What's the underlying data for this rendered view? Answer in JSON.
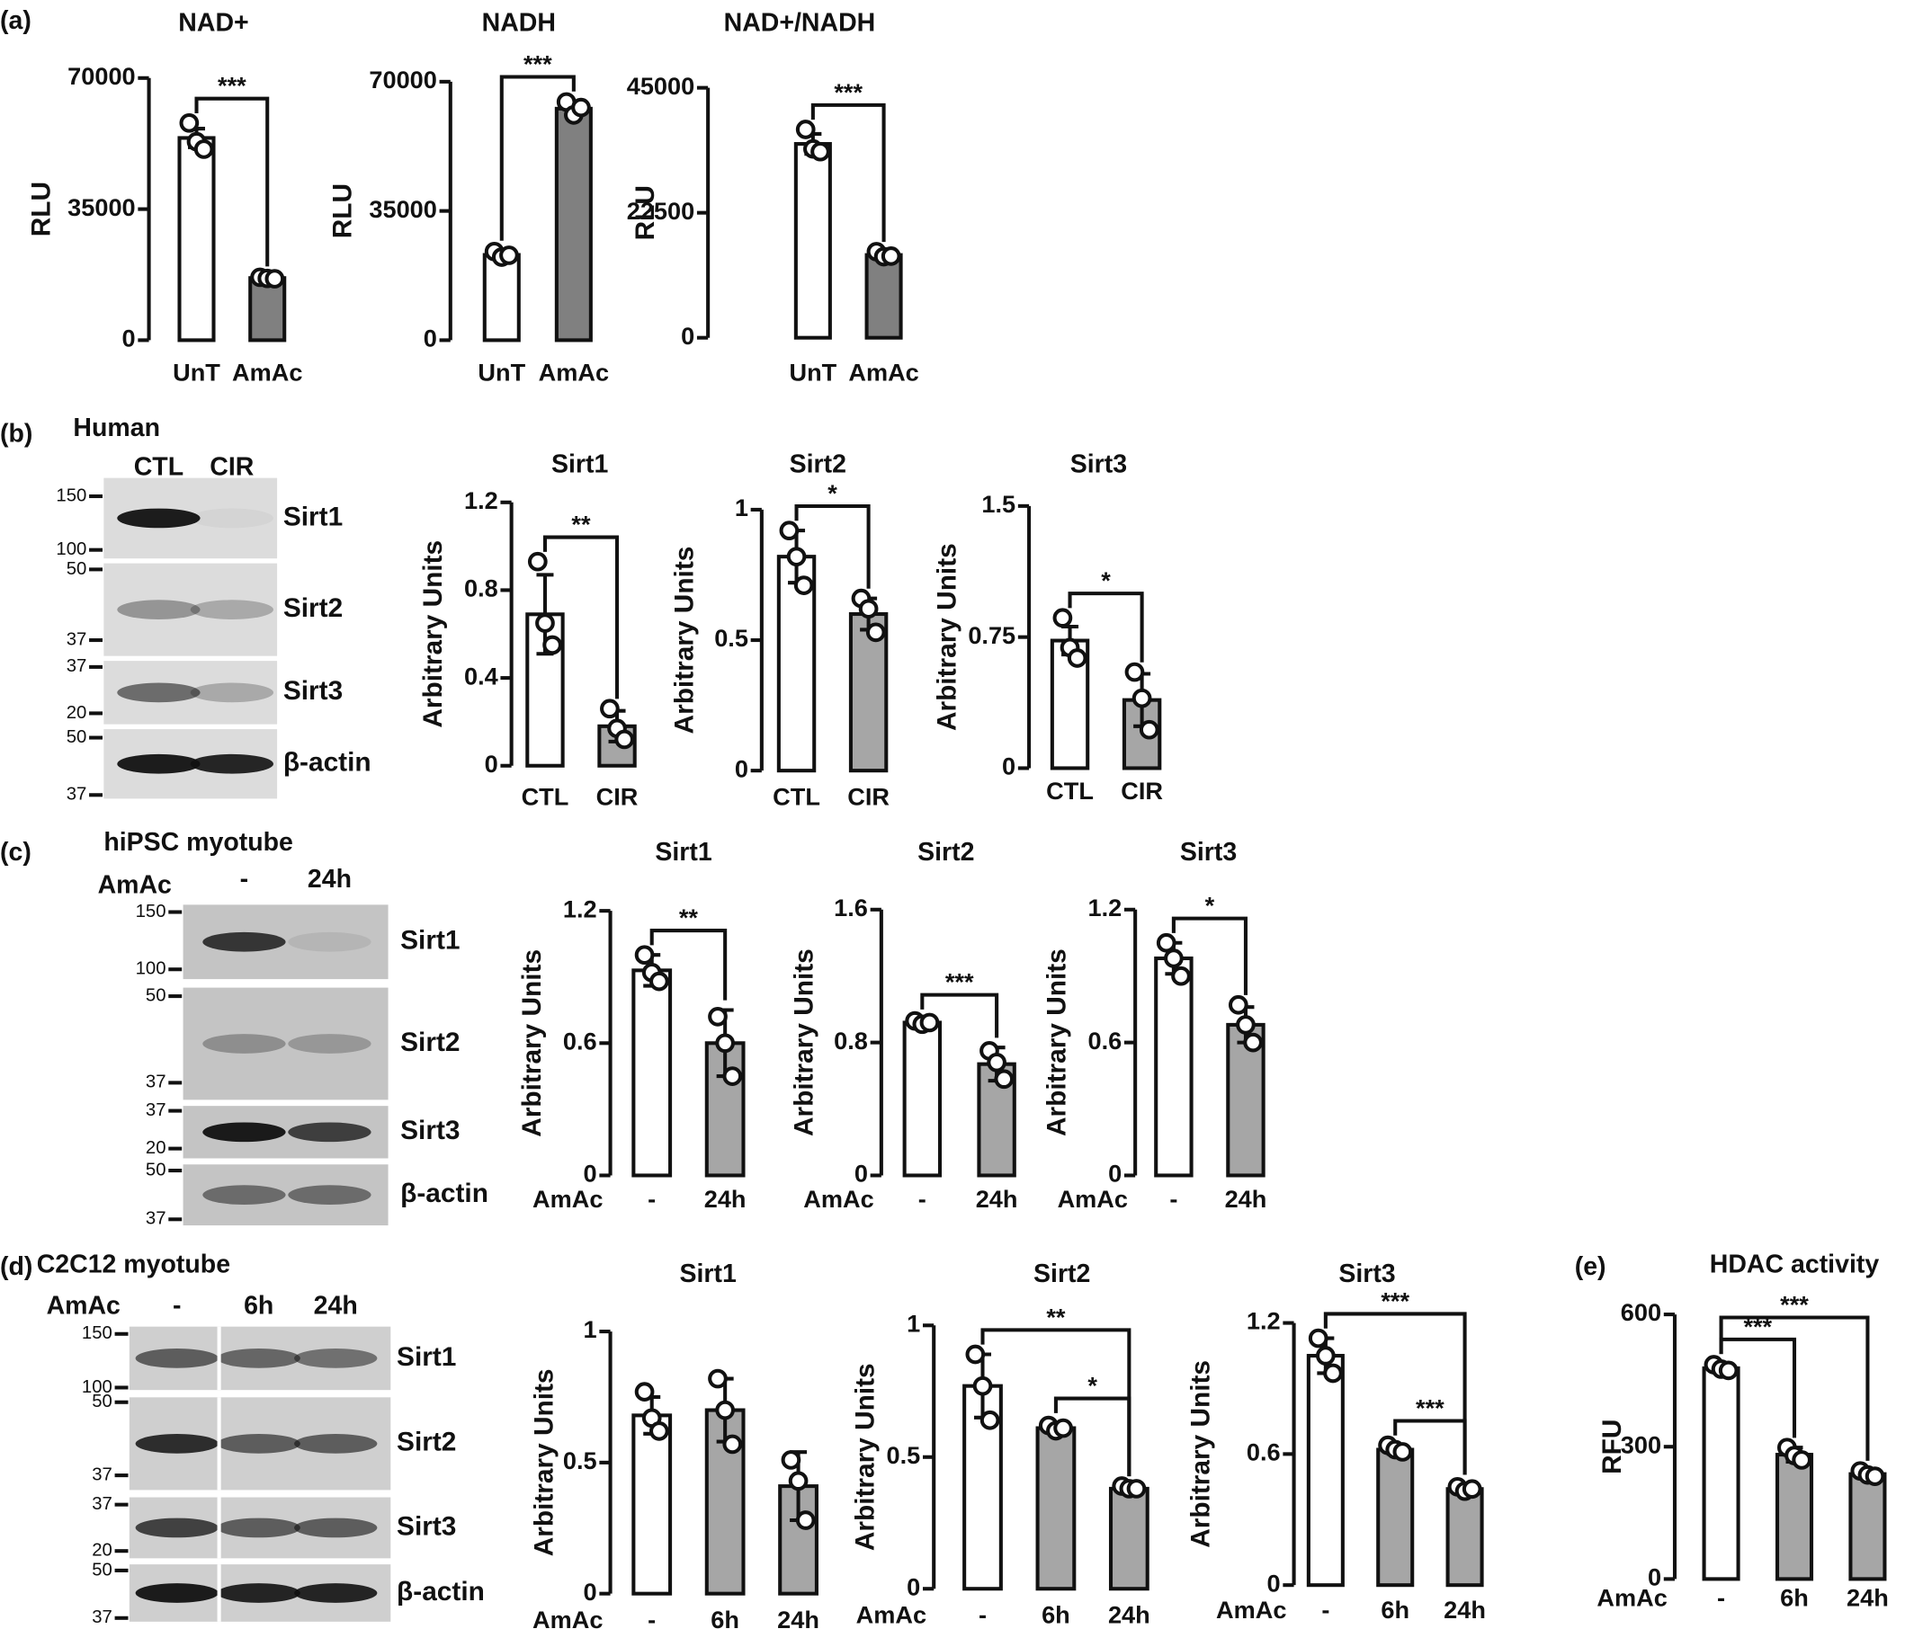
{
  "panel_labels": [
    "(a)",
    "(b)",
    "(c)",
    "(d)",
    "(e)"
  ],
  "blots": [
    {
      "title": "Human",
      "lanes": [
        "CTL",
        "CIR"
      ],
      "rows": [
        {
          "name": "Sirt1",
          "markers": [
            150,
            100
          ]
        },
        {
          "name": "Sirt2",
          "markers": [
            50,
            37
          ]
        },
        {
          "name": "Sirt3",
          "markers": [
            37,
            20
          ]
        },
        {
          "name": "β-actin",
          "markers": [
            50,
            37
          ]
        }
      ]
    },
    {
      "title": "hiPSC myotube",
      "treatment": "AmAc",
      "lanes": [
        "-",
        "24h"
      ],
      "rows": [
        {
          "name": "Sirt1",
          "markers": [
            150,
            100
          ]
        },
        {
          "name": "Sirt2",
          "markers": [
            50,
            37
          ]
        },
        {
          "name": "Sirt3",
          "markers": [
            37,
            20
          ]
        },
        {
          "name": "β-actin",
          "markers": [
            50,
            37
          ]
        }
      ]
    },
    {
      "title": "C2C12 myotube",
      "treatment": "AmAc",
      "lanes": [
        "-",
        "6h",
        "24h"
      ],
      "rows": [
        {
          "name": "Sirt1",
          "markers": [
            150,
            100
          ]
        },
        {
          "name": "Sirt2",
          "markers": [
            50,
            37
          ]
        },
        {
          "name": "Sirt3",
          "markers": [
            37,
            20
          ]
        },
        {
          "name": "β-actin",
          "markers": [
            50,
            37
          ]
        }
      ]
    }
  ],
  "chart_data": [
    {
      "type": "bar",
      "title": "NAD+",
      "ylabel": "RLU",
      "categories": [
        "UnT",
        "AmAc"
      ],
      "values": [
        54000,
        16600
      ],
      "errors": [
        2500,
        500
      ],
      "points": [
        [
          58000,
          53000,
          51000
        ],
        [
          16800,
          16500,
          16400
        ]
      ],
      "colors": [
        "#ffffff",
        "#808080"
      ],
      "ylim": [
        0,
        70000
      ],
      "yticks": [
        0,
        35000,
        70000
      ],
      "brackets": [
        {
          "label": "***",
          "between": [
            "UnT",
            "AmAc"
          ]
        }
      ]
    },
    {
      "type": "bar",
      "title": "NADH",
      "ylabel": "RLU",
      "categories": [
        "UnT",
        "AmAc"
      ],
      "values": [
        23100,
        62700
      ],
      "errors": [
        1200,
        2000
      ],
      "points": [
        [
          24000,
          22500,
          23000
        ],
        [
          64500,
          61000,
          63000
        ]
      ],
      "colors": [
        "#ffffff",
        "#808080"
      ],
      "ylim": [
        0,
        70000
      ],
      "yticks": [
        0,
        35000,
        70000
      ],
      "brackets": [
        {
          "label": "***",
          "between": [
            "UnT",
            "AmAc"
          ]
        }
      ]
    },
    {
      "type": "bar",
      "title": "NAD+/NADH",
      "ylabel": "RLU",
      "categories": [
        "UnT",
        "AmAc"
      ],
      "values": [
        34900,
        14900
      ],
      "errors": [
        1800,
        600
      ],
      "points": [
        [
          37500,
          34000,
          33500
        ],
        [
          15500,
          14600,
          14700
        ]
      ],
      "colors": [
        "#ffffff",
        "#808080"
      ],
      "ylim": [
        0,
        45000
      ],
      "yticks": [
        0,
        22500,
        45000
      ],
      "brackets": [
        {
          "label": "***",
          "between": [
            "UnT",
            "AmAc"
          ]
        }
      ]
    },
    {
      "type": "bar",
      "title": "Sirt1",
      "ylabel": "Arbitrary Units",
      "categories": [
        "CTL",
        "CIR"
      ],
      "values": [
        0.69,
        0.18
      ],
      "errors": [
        0.18,
        0.07
      ],
      "points": [
        [
          0.93,
          0.65,
          0.55
        ],
        [
          0.26,
          0.17,
          0.12
        ]
      ],
      "colors": [
        "#ffffff",
        "#a6a6a6"
      ],
      "ylim": [
        0,
        1.2
      ],
      "yticks": [
        0,
        0.4,
        0.8,
        1.2
      ],
      "brackets": [
        {
          "label": "**",
          "between": [
            "CTL",
            "CIR"
          ]
        }
      ]
    },
    {
      "type": "bar",
      "title": "Sirt2",
      "ylabel": "Arbitrary Units",
      "categories": [
        "CTL",
        "CIR"
      ],
      "values": [
        0.82,
        0.6
      ],
      "errors": [
        0.1,
        0.06
      ],
      "points": [
        [
          0.92,
          0.82,
          0.71
        ],
        [
          0.66,
          0.62,
          0.53
        ]
      ],
      "colors": [
        "#ffffff",
        "#a6a6a6"
      ],
      "ylim": [
        0,
        1
      ],
      "yticks": [
        0,
        0.5,
        1
      ],
      "brackets": [
        {
          "label": "*",
          "between": [
            "CTL",
            "CIR"
          ]
        }
      ]
    },
    {
      "type": "bar",
      "title": "Sirt3",
      "ylabel": "Arbitrary Units",
      "categories": [
        "CTL",
        "CIR"
      ],
      "values": [
        0.73,
        0.39
      ],
      "errors": [
        0.08,
        0.15
      ],
      "points": [
        [
          0.86,
          0.69,
          0.63
        ],
        [
          0.55,
          0.4,
          0.22
        ]
      ],
      "colors": [
        "#ffffff",
        "#a6a6a6"
      ],
      "ylim": [
        0,
        1.5
      ],
      "yticks": [
        0,
        0.75,
        1.5
      ],
      "brackets": [
        {
          "label": "*",
          "between": [
            "CTL",
            "CIR"
          ]
        }
      ]
    },
    {
      "type": "bar",
      "title": "Sirt1",
      "ylabel": "Arbitrary Units",
      "xlabel": "AmAc",
      "categories": [
        "-",
        "24h"
      ],
      "values": [
        0.93,
        0.6
      ],
      "errors": [
        0.07,
        0.15
      ],
      "points": [
        [
          1.0,
          0.92,
          0.88
        ],
        [
          0.72,
          0.6,
          0.45
        ]
      ],
      "colors": [
        "#ffffff",
        "#a6a6a6"
      ],
      "ylim": [
        0,
        1.2
      ],
      "yticks": [
        0,
        0.6,
        1.2
      ],
      "brackets": [
        {
          "label": "**",
          "between": [
            "-",
            "24h"
          ]
        }
      ]
    },
    {
      "type": "bar",
      "title": "Sirt2",
      "ylabel": "Arbitrary Units",
      "xlabel": "AmAc",
      "categories": [
        "-",
        "24h"
      ],
      "values": [
        0.92,
        0.67
      ],
      "errors": [
        0.02,
        0.1
      ],
      "points": [
        [
          0.93,
          0.91,
          0.92
        ],
        [
          0.75,
          0.68,
          0.58
        ]
      ],
      "colors": [
        "#ffffff",
        "#a6a6a6"
      ],
      "ylim": [
        0,
        1.6
      ],
      "yticks": [
        0,
        0.8,
        1.6
      ],
      "brackets": [
        {
          "label": "***",
          "between": [
            "-",
            "24h"
          ]
        }
      ]
    },
    {
      "type": "bar",
      "title": "Sirt3",
      "ylabel": "Arbitrary Units",
      "xlabel": "AmAc",
      "categories": [
        "-",
        "24h"
      ],
      "values": [
        0.98,
        0.68
      ],
      "errors": [
        0.07,
        0.08
      ],
      "points": [
        [
          1.05,
          0.98,
          0.9
        ],
        [
          0.77,
          0.68,
          0.6
        ]
      ],
      "colors": [
        "#ffffff",
        "#a6a6a6"
      ],
      "ylim": [
        0,
        1.2
      ],
      "yticks": [
        0,
        0.6,
        1.2
      ],
      "brackets": [
        {
          "label": "*",
          "between": [
            "-",
            "24h"
          ]
        }
      ]
    },
    {
      "type": "bar",
      "title": "Sirt1",
      "ylabel": "Arbitrary Units",
      "xlabel": "AmAc",
      "categories": [
        "-",
        "6h",
        "24h"
      ],
      "values": [
        0.68,
        0.7,
        0.41
      ],
      "errors": [
        0.07,
        0.12,
        0.13
      ],
      "points": [
        [
          0.77,
          0.67,
          0.62
        ],
        [
          0.82,
          0.7,
          0.57
        ],
        [
          0.51,
          0.43,
          0.28
        ]
      ],
      "colors": [
        "#ffffff",
        "#a6a6a6",
        "#a6a6a6"
      ],
      "ylim": [
        0,
        1
      ],
      "yticks": [
        0,
        0.5,
        1
      ],
      "brackets": []
    },
    {
      "type": "bar",
      "title": "Sirt2",
      "ylabel": "Arbitrary Units",
      "xlabel": "AmAc",
      "categories": [
        "-",
        "6h",
        "24h"
      ],
      "values": [
        0.77,
        0.61,
        0.38
      ],
      "errors": [
        0.12,
        0.02,
        0.01
      ],
      "points": [
        [
          0.89,
          0.77,
          0.64
        ],
        [
          0.62,
          0.6,
          0.61
        ],
        [
          0.39,
          0.38,
          0.38
        ]
      ],
      "colors": [
        "#ffffff",
        "#a6a6a6",
        "#a6a6a6"
      ],
      "ylim": [
        0,
        1
      ],
      "yticks": [
        0,
        0.5,
        1
      ],
      "brackets": [
        {
          "label": "**",
          "between": [
            "-",
            "24h"
          ]
        },
        {
          "label": "*",
          "between": [
            "6h",
            "24h"
          ]
        }
      ]
    },
    {
      "type": "bar",
      "title": "Sirt3",
      "ylabel": "Arbitrary Units",
      "xlabel": "AmAc",
      "categories": [
        "-",
        "6h",
        "24h"
      ],
      "values": [
        1.05,
        0.62,
        0.44
      ],
      "errors": [
        0.08,
        0.02,
        0.02
      ],
      "points": [
        [
          1.13,
          1.05,
          0.97
        ],
        [
          0.64,
          0.62,
          0.61
        ],
        [
          0.45,
          0.43,
          0.44
        ]
      ],
      "colors": [
        "#ffffff",
        "#a6a6a6",
        "#a6a6a6"
      ],
      "ylim": [
        0,
        1.2
      ],
      "yticks": [
        0,
        0.6,
        1.2
      ],
      "brackets": [
        {
          "label": "***",
          "between": [
            "-",
            "24h"
          ]
        },
        {
          "label": "***",
          "between": [
            "6h",
            "24h"
          ]
        }
      ]
    },
    {
      "type": "bar",
      "title": "HDAC activity",
      "ylabel": "RFU",
      "xlabel": "AmAc",
      "categories": [
        "-",
        "6h",
        "24h"
      ],
      "values": [
        478,
        282,
        238
      ],
      "errors": [
        10,
        16,
        8
      ],
      "points": [
        [
          486,
          476,
          473
        ],
        [
          298,
          280,
          270
        ],
        [
          245,
          236,
          233
        ]
      ],
      "colors": [
        "#ffffff",
        "#a6a6a6",
        "#a6a6a6"
      ],
      "ylim": [
        0,
        600
      ],
      "yticks": [
        0,
        300,
        600
      ],
      "brackets": [
        {
          "label": "***",
          "between": [
            "-",
            "6h"
          ]
        },
        {
          "label": "***",
          "between": [
            "-",
            "24h"
          ]
        }
      ]
    }
  ]
}
